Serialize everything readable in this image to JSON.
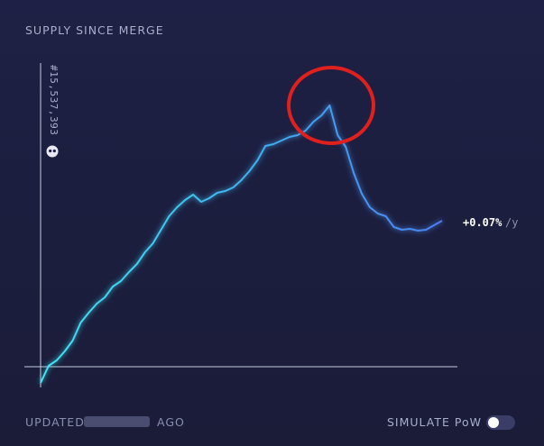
{
  "chart_data": {
    "type": "line",
    "title": "SUPPLY SINCE MERGE",
    "block_label": "#15,537,393",
    "rate": "+0.07%",
    "rate_unit": "/y",
    "ylim": [
      -30,
      300
    ],
    "values": [
      -18,
      1,
      7,
      17,
      29,
      49,
      60,
      70,
      77,
      89,
      95,
      105,
      114,
      127,
      137,
      152,
      167,
      177,
      185,
      191,
      183,
      187,
      193,
      195,
      199,
      207,
      217,
      229,
      245,
      247,
      251,
      255,
      257,
      262,
      272,
      279,
      290,
      257,
      244,
      215,
      192,
      177,
      170,
      167,
      155,
      152,
      153,
      151,
      152,
      157,
      162
    ]
  },
  "footer": {
    "updated": "UPDATED",
    "ago": "AGO",
    "simulate": "SIMULATE PoW"
  }
}
